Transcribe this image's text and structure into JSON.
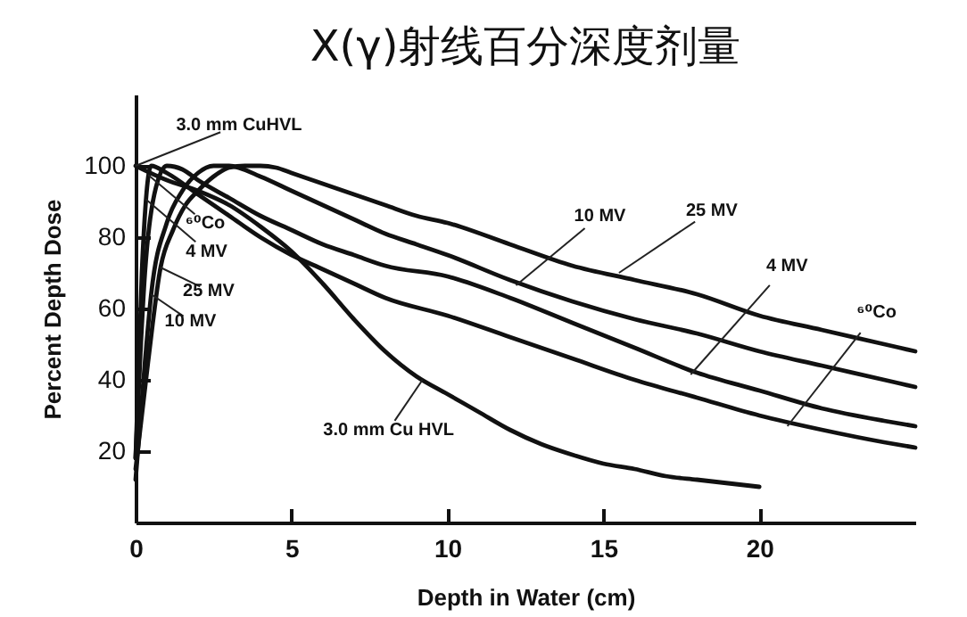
{
  "chart_data": {
    "type": "line",
    "title": "X(γ)射线百分深度剂量",
    "xlabel": "Depth in Water (cm)",
    "ylabel": "Percent Depth Dose",
    "xlim": [
      0,
      25
    ],
    "xticks": [
      0,
      5,
      10,
      15,
      20
    ],
    "ylim": [
      0,
      120
    ],
    "yticks": [
      20,
      40,
      60,
      80,
      100
    ],
    "line_style": "solid",
    "series": [
      {
        "color": "#111111",
        "x": [
          0,
          1,
          2,
          3,
          4,
          5,
          6,
          7,
          8,
          9,
          10,
          11,
          12,
          13,
          14,
          15,
          16,
          17,
          18,
          19,
          20
        ],
        "values": [
          100,
          96,
          93,
          89,
          83,
          76,
          67,
          57,
          48,
          41,
          36,
          31,
          26,
          22,
          19,
          16.5,
          15,
          13,
          12,
          11,
          10
        ]
      },
      {
        "color": "#111111",
        "x": [
          0,
          0.2,
          0.5,
          1,
          2,
          3,
          4,
          5,
          6,
          7,
          8,
          10,
          12,
          14,
          16,
          18,
          20,
          22,
          24,
          25
        ],
        "values": [
          18,
          70,
          100,
          98,
          92,
          86,
          80,
          75,
          71,
          67,
          63,
          58,
          52,
          46,
          40,
          35,
          30,
          26,
          22.5,
          21
        ]
      },
      {
        "color": "#111111",
        "x": [
          0,
          0.3,
          0.6,
          1,
          1.5,
          2,
          3,
          4,
          5,
          6,
          7,
          8,
          10,
          12,
          14,
          16,
          18,
          20,
          22,
          24,
          25
        ],
        "values": [
          18,
          70,
          92,
          100,
          99,
          96,
          91,
          86,
          82,
          78,
          75,
          72,
          69,
          63,
          56,
          49,
          42,
          37,
          32,
          28.5,
          27
        ]
      },
      {
        "color": "#111111",
        "x": [
          0,
          0.3,
          0.5,
          1,
          1.5,
          2,
          2.5,
          3,
          4,
          5,
          6,
          7,
          8,
          9,
          10,
          12,
          14,
          16,
          18,
          20,
          22,
          24,
          25
        ],
        "values": [
          12,
          45,
          64,
          84,
          93,
          98,
          100,
          100,
          97,
          93,
          89,
          85,
          81,
          78,
          75,
          68,
          62,
          57,
          53,
          48,
          44,
          40,
          38
        ]
      },
      {
        "color": "#111111",
        "x": [
          0,
          0.4,
          0.8,
          1.2,
          1.6,
          2,
          2.5,
          3,
          3.5,
          4,
          4.5,
          5,
          6,
          7,
          8,
          9,
          10,
          12,
          14,
          16,
          18,
          20,
          22,
          24,
          25
        ],
        "values": [
          15,
          45,
          71.5,
          82,
          89,
          93,
          97,
          99.5,
          100,
          100,
          99.5,
          98,
          95,
          92,
          89,
          86,
          84,
          78,
          72,
          68,
          64,
          58,
          54,
          50,
          48
        ]
      }
    ],
    "annotations": [
      {
        "text": "3.0 mm CuHVL",
        "x": 0,
        "y": 100
      },
      {
        "text": "⁶⁰Co",
        "x": 0.4,
        "y": 97.5
      },
      {
        "text": "4 MV",
        "x": 0.33,
        "y": 90.6
      },
      {
        "text": "25 MV",
        "x": 0.8,
        "y": 71.5
      },
      {
        "text": "10 MV",
        "x": 0.5,
        "y": 64
      },
      {
        "text": "3.0 mm Cu HVL",
        "x": 9.2,
        "y": 40
      },
      {
        "text": "10 MV",
        "x": 12.2,
        "y": 66.5
      },
      {
        "text": "25 MV",
        "x": 15.5,
        "y": 70
      },
      {
        "text": "4 MV",
        "x": 17.8,
        "y": 41.5
      },
      {
        "text": "⁶⁰Co",
        "x": 20.9,
        "y": 27
      }
    ]
  }
}
